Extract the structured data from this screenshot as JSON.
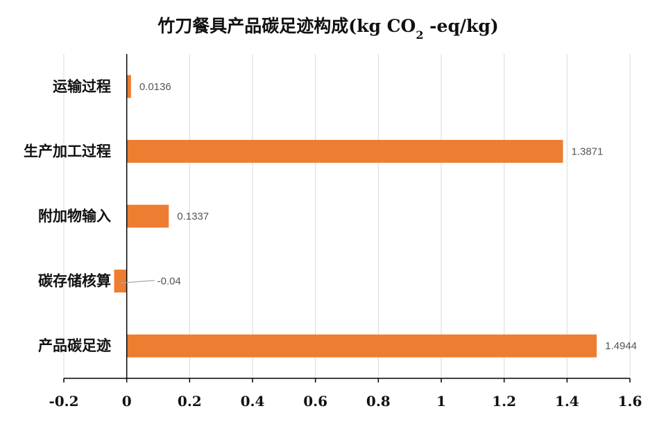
{
  "chart_data": {
    "type": "bar",
    "orientation": "horizontal",
    "title": "竹刀餐具产品碳足迹构成(kg CO",
    "title_subscript": "2",
    "title_suffix": " -eq/kg)",
    "categories": [
      "运输过程",
      "生产加工过程",
      "附加物输入",
      "碳存储核算",
      "产品碳足迹"
    ],
    "values": [
      0.0136,
      1.3871,
      0.1337,
      -0.04,
      1.4944
    ],
    "data_labels": [
      "0.0136",
      "1.3871",
      "0.1337",
      "-0.04",
      "1.4944"
    ],
    "x_ticks": [
      "-0.2",
      "0",
      "0.2",
      "0.4",
      "0.6",
      "0.8",
      "1",
      "1.2",
      "1.4",
      "1.6"
    ],
    "xlim": [
      -0.2,
      1.6
    ],
    "grid": "vertical",
    "legend": "none",
    "bar_color": "#ED7D31",
    "grid_color": "#D9D9D9",
    "axis_color": "#000000"
  }
}
